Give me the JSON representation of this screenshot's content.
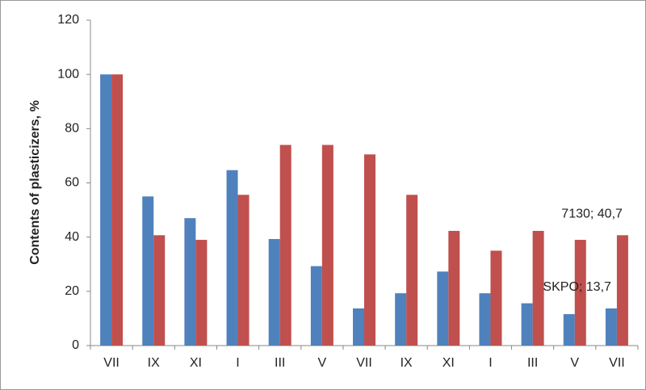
{
  "chart_data": {
    "type": "bar",
    "y_label": "Contents of plasticizers, %",
    "categories": [
      "VII",
      "IX",
      "XI",
      "I",
      "III",
      "V",
      "VII",
      "IX",
      "XI",
      "I",
      "III",
      "V",
      "VII"
    ],
    "series": [
      {
        "color": "#4f81bd",
        "values": [
          100,
          55,
          47,
          64.7,
          39.3,
          29.3,
          13.7,
          19.3,
          27.3,
          19.3,
          15.6,
          11.6,
          13.7
        ],
        "value_labels": [
          null,
          null,
          null,
          null,
          null,
          null,
          null,
          null,
          null,
          null,
          null,
          null,
          "SKPO; 13,7"
        ]
      },
      {
        "color": "#c0504d",
        "values": [
          100,
          40.7,
          39,
          55.6,
          74,
          74,
          70.5,
          55.6,
          42.3,
          35,
          42.3,
          39,
          40.7
        ],
        "value_labels": [
          null,
          null,
          null,
          null,
          null,
          null,
          null,
          null,
          null,
          null,
          null,
          null,
          "7130; 40,7"
        ]
      }
    ],
    "ylim": [
      0,
      120
    ],
    "yticks": [
      0,
      20,
      40,
      60,
      80,
      100,
      120
    ],
    "grid": false
  }
}
